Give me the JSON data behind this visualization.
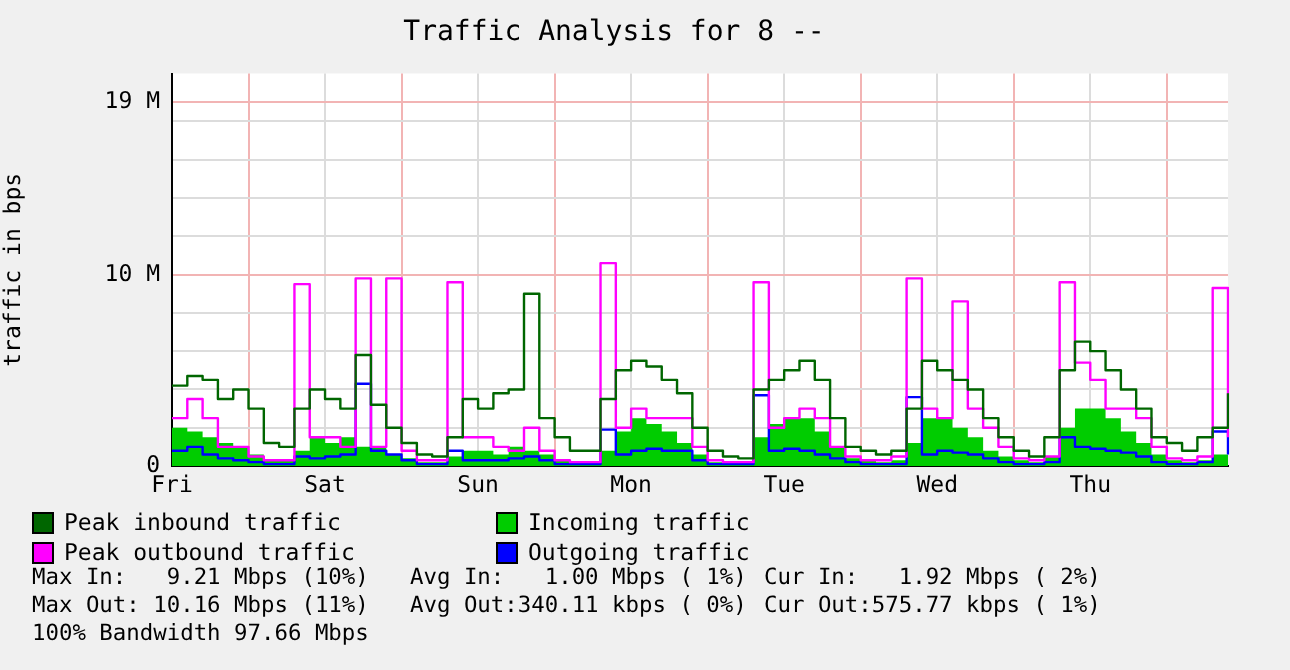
{
  "chart_data": {
    "type": "step",
    "title": "Traffic Analysis for 8 --",
    "ylabel": "traffic in bps",
    "categories": [
      "Fri",
      null,
      null,
      null,
      null,
      null,
      null,
      null,
      null,
      null,
      "Sat",
      null,
      null,
      null,
      null,
      null,
      null,
      null,
      null,
      null,
      "Sun",
      null,
      null,
      null,
      null,
      null,
      null,
      null,
      null,
      null,
      "Mon",
      null,
      null,
      null,
      null,
      null,
      null,
      null,
      null,
      null,
      "Tue",
      null,
      null,
      null,
      null,
      null,
      null,
      null,
      null,
      null,
      "Wed",
      null,
      null,
      null,
      null,
      null,
      null,
      null,
      null,
      null,
      "Thu",
      null,
      null,
      null,
      null,
      null,
      null,
      null,
      null,
      null
    ],
    "series": [
      {
        "name": "Peak inbound traffic",
        "color": "#006600",
        "values": [
          4.2,
          4.7,
          4.5,
          3.5,
          4.0,
          3.0,
          1.2,
          1.0,
          3.0,
          4.0,
          3.5,
          3.0,
          5.8,
          3.2,
          2.0,
          1.2,
          0.6,
          0.5,
          1.5,
          3.5,
          3.0,
          3.8,
          4.0,
          9.0,
          2.5,
          1.5,
          0.8,
          0.8,
          3.5,
          5.0,
          5.5,
          5.2,
          4.5,
          3.8,
          2.0,
          0.8,
          0.5,
          0.4,
          4.0,
          4.5,
          5.0,
          5.5,
          4.5,
          2.5,
          1.0,
          0.8,
          0.6,
          0.8,
          3.0,
          5.5,
          5.0,
          4.5,
          4.0,
          2.5,
          1.5,
          0.8,
          0.5,
          1.5,
          5.0,
          6.5,
          6.0,
          5.0,
          4.0,
          3.0,
          1.5,
          1.2,
          0.8,
          1.5,
          2.0,
          3.8
        ]
      },
      {
        "name": "Incoming traffic",
        "color": "#00cc00",
        "type": "area",
        "values": [
          2.0,
          1.8,
          1.5,
          1.2,
          1.0,
          0.6,
          0.3,
          0.3,
          0.8,
          1.5,
          1.2,
          1.5,
          1.0,
          1.0,
          0.6,
          0.4,
          0.2,
          0.2,
          0.5,
          0.8,
          0.8,
          0.6,
          1.0,
          0.8,
          0.6,
          0.3,
          0.2,
          0.2,
          0.8,
          1.8,
          2.5,
          2.2,
          1.8,
          1.2,
          0.6,
          0.2,
          0.2,
          0.2,
          1.5,
          2.2,
          2.5,
          2.5,
          1.8,
          1.0,
          0.4,
          0.3,
          0.2,
          0.3,
          1.2,
          2.5,
          2.5,
          2.0,
          1.5,
          0.8,
          0.5,
          0.3,
          0.2,
          0.5,
          2.0,
          3.0,
          3.0,
          2.5,
          1.8,
          1.2,
          0.6,
          0.3,
          0.2,
          0.3,
          0.6,
          1.2
        ]
      },
      {
        "name": "Peak outbound traffic",
        "color": "#ff00ff",
        "values": [
          2.5,
          3.5,
          2.5,
          1.0,
          1.0,
          0.5,
          0.3,
          0.3,
          9.5,
          1.5,
          1.5,
          1.0,
          9.8,
          1.0,
          9.8,
          0.8,
          0.3,
          0.3,
          9.6,
          1.5,
          1.5,
          1.0,
          0.8,
          2.0,
          0.8,
          0.3,
          0.2,
          0.2,
          10.6,
          2.0,
          3.0,
          2.5,
          2.5,
          2.5,
          1.0,
          0.3,
          0.2,
          0.2,
          9.6,
          2.0,
          2.5,
          3.0,
          2.5,
          1.0,
          0.5,
          0.3,
          0.3,
          0.5,
          9.8,
          3.0,
          2.5,
          8.6,
          3.0,
          2.0,
          1.0,
          0.4,
          0.3,
          0.5,
          9.6,
          5.4,
          4.5,
          3.0,
          3.0,
          2.5,
          1.0,
          0.4,
          0.3,
          0.5,
          9.3,
          1.5
        ]
      },
      {
        "name": "Outgoing traffic",
        "color": "#0000ff",
        "values": [
          0.8,
          1.0,
          0.6,
          0.4,
          0.3,
          0.2,
          0.1,
          0.1,
          0.5,
          0.4,
          0.5,
          0.6,
          4.3,
          0.8,
          0.6,
          0.3,
          0.1,
          0.1,
          0.8,
          0.3,
          0.3,
          0.3,
          0.4,
          0.5,
          0.3,
          0.1,
          0.1,
          0.1,
          1.9,
          0.6,
          0.8,
          0.9,
          0.8,
          0.8,
          0.3,
          0.1,
          0.1,
          0.1,
          3.7,
          0.8,
          0.9,
          0.8,
          0.6,
          0.4,
          0.2,
          0.1,
          0.1,
          0.1,
          3.6,
          0.6,
          0.8,
          0.7,
          0.6,
          0.4,
          0.2,
          0.1,
          0.1,
          0.2,
          1.5,
          1.0,
          0.9,
          0.8,
          0.7,
          0.5,
          0.2,
          0.1,
          0.1,
          0.2,
          1.8,
          0.6
        ]
      }
    ],
    "ylim": [
      0,
      20.5
    ],
    "yticks": [
      0,
      {
        "value": 2,
        "label": null
      },
      {
        "value": 4,
        "label": null
      },
      {
        "value": 6,
        "label": null
      },
      {
        "value": 8,
        "label": null
      },
      {
        "value": 10,
        "label": "10 M"
      },
      {
        "value": 12,
        "label": null
      },
      {
        "value": 14,
        "label": null
      },
      {
        "value": 16,
        "label": null
      },
      {
        "value": 18,
        "label": null
      },
      {
        "value": 19,
        "label": "19 M"
      }
    ],
    "grid": true,
    "legend": "bottom",
    "marker": "none",
    "line_style": "solid",
    "annotations": [
      "Max In:   9.21 Mbps (10%)",
      "Avg In:   1.00 Mbps ( 1%)",
      "Cur In:   1.92 Mbps ( 2%)",
      "Max Out: 10.16 Mbps (11%)",
      "Avg Out:340.11 kbps ( 0%)",
      "Cur Out:575.77 kbps ( 1%)",
      "100% Bandwidth 97.66 Mbps"
    ]
  }
}
